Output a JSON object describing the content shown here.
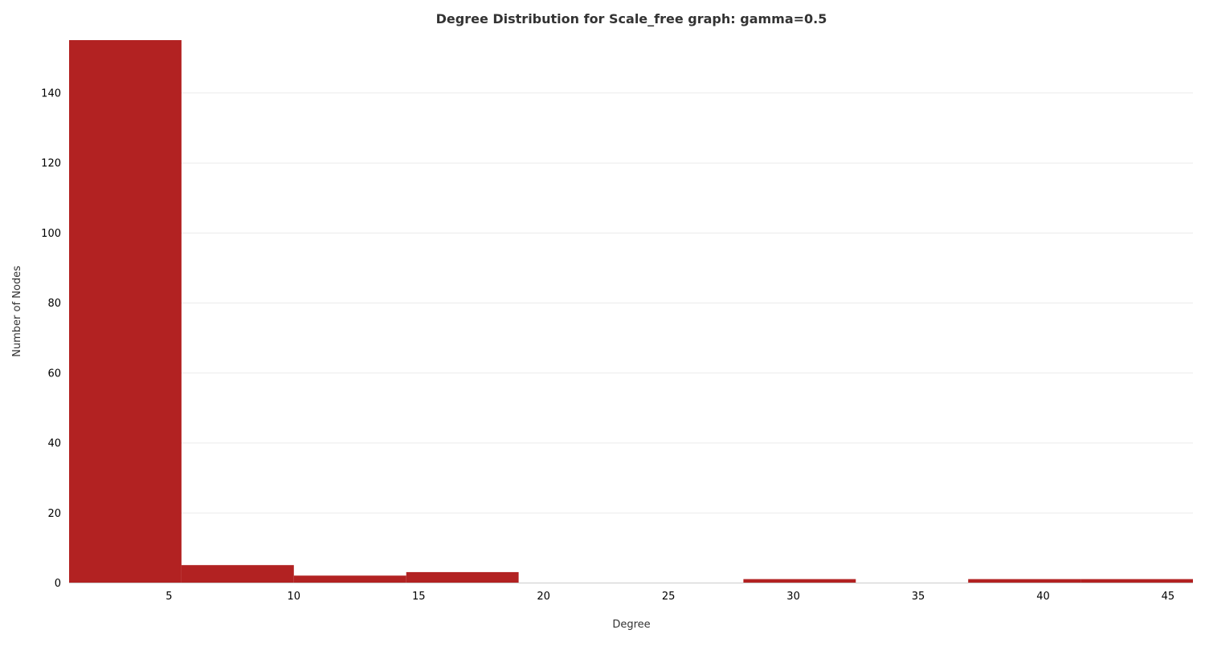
{
  "chart_data": {
    "type": "bar",
    "title": "Degree Distribution for Scale_free graph: gamma=0.5",
    "xlabel": "Degree",
    "ylabel": "Number of Nodes",
    "xlim": [
      1,
      46
    ],
    "ylim": [
      0,
      155
    ],
    "xticks": [
      5,
      10,
      15,
      20,
      25,
      30,
      35,
      40,
      45
    ],
    "yticks": [
      0,
      20,
      40,
      60,
      80,
      100,
      120,
      140
    ],
    "grid": "horizontal",
    "bar_color": "#b22222",
    "bins": [
      {
        "start": 1.0,
        "end": 5.5,
        "count": 155
      },
      {
        "start": 5.5,
        "end": 10.0,
        "count": 5
      },
      {
        "start": 10.0,
        "end": 14.5,
        "count": 2
      },
      {
        "start": 14.5,
        "end": 19.0,
        "count": 3
      },
      {
        "start": 19.0,
        "end": 23.5,
        "count": 0
      },
      {
        "start": 23.5,
        "end": 28.0,
        "count": 0
      },
      {
        "start": 28.0,
        "end": 32.5,
        "count": 1
      },
      {
        "start": 32.5,
        "end": 37.0,
        "count": 0
      },
      {
        "start": 37.0,
        "end": 41.5,
        "count": 1
      },
      {
        "start": 41.5,
        "end": 46.0,
        "count": 1
      }
    ]
  }
}
